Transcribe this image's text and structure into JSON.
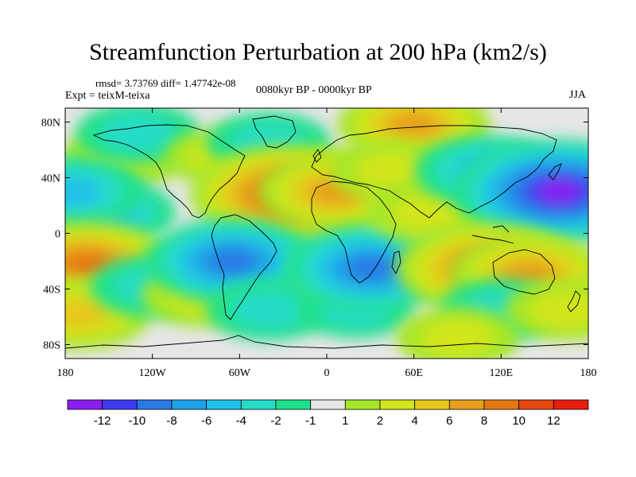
{
  "header": {
    "title": "Streamfunction Perturbation at 200 hPa (km2/s)",
    "stats": "rmsd= 3.73769 diff= 1.47742e-08",
    "experiment": "Expt = teixM-teixa",
    "period": "0080kyr BP - 0000kyr BP",
    "season": "JJA"
  },
  "chart_data": {
    "type": "heatmap",
    "title": "Streamfunction Perturbation at 200 hPa (km2/s)",
    "xlim": [
      -180,
      180
    ],
    "ylim": [
      -90,
      90
    ],
    "x_ticks": [
      {
        "value": -180,
        "label": "180"
      },
      {
        "value": -120,
        "label": "120W"
      },
      {
        "value": -60,
        "label": "60W"
      },
      {
        "value": 0,
        "label": "0"
      },
      {
        "value": 60,
        "label": "60E"
      },
      {
        "value": 120,
        "label": "120E"
      },
      {
        "value": 180,
        "label": "180"
      }
    ],
    "y_ticks": [
      {
        "value": 80,
        "label": "80N"
      },
      {
        "value": 40,
        "label": "40N"
      },
      {
        "value": 0,
        "label": "0"
      },
      {
        "value": -40,
        "label": "40S"
      },
      {
        "value": -80,
        "label": "80S"
      }
    ],
    "colorbar": {
      "colors": [
        "#8a1ff0",
        "#3c3cf0",
        "#2c78e6",
        "#1ea0e6",
        "#22c2e8",
        "#26dcc8",
        "#20e08c",
        "#e6e6e6",
        "#a6e628",
        "#d2e61e",
        "#e6c81e",
        "#e6a01e",
        "#e67814",
        "#e6460f",
        "#e61e0f"
      ],
      "labels": [
        "-12",
        "-10",
        "-8",
        "-6",
        "-4",
        "-2",
        "-1",
        "1",
        "2",
        "4",
        "6",
        "8",
        "10",
        "12"
      ]
    },
    "features": [
      {
        "lon": -140,
        "lat": 55,
        "value": 3
      },
      {
        "lon": -130,
        "lat": 72,
        "value": -3
      },
      {
        "lon": -150,
        "lat": 15,
        "value": -4
      },
      {
        "lon": -175,
        "lat": 30,
        "value": -5
      },
      {
        "lon": -165,
        "lat": -22,
        "value": 8
      },
      {
        "lon": -170,
        "lat": -58,
        "value": 5
      },
      {
        "lon": -120,
        "lat": -38,
        "value": -3
      },
      {
        "lon": -85,
        "lat": -45,
        "value": 3
      },
      {
        "lon": -72,
        "lat": 55,
        "value": 2
      },
      {
        "lon": -40,
        "lat": 65,
        "value": -3
      },
      {
        "lon": -25,
        "lat": 28,
        "value": 11
      },
      {
        "lon": 5,
        "lat": 30,
        "value": 6
      },
      {
        "lon": -65,
        "lat": -20,
        "value": -8
      },
      {
        "lon": -40,
        "lat": -55,
        "value": -3
      },
      {
        "lon": 20,
        "lat": -55,
        "value": -2
      },
      {
        "lon": 30,
        "lat": -25,
        "value": -8
      },
      {
        "lon": 60,
        "lat": 78,
        "value": 6
      },
      {
        "lon": 45,
        "lat": 45,
        "value": 3
      },
      {
        "lon": 70,
        "lat": 15,
        "value": 3
      },
      {
        "lon": 110,
        "lat": 45,
        "value": -5
      },
      {
        "lon": 160,
        "lat": 30,
        "value": -12
      },
      {
        "lon": 110,
        "lat": -25,
        "value": 9
      },
      {
        "lon": 140,
        "lat": -30,
        "value": 7
      },
      {
        "lon": 120,
        "lat": -55,
        "value": -3
      },
      {
        "lon": 165,
        "lat": -55,
        "value": 3
      },
      {
        "lon": 90,
        "lat": -75,
        "value": 3
      }
    ]
  }
}
